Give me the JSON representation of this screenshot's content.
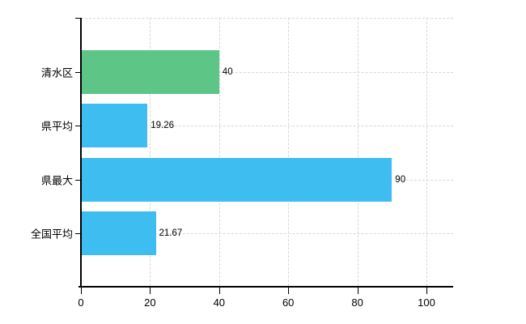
{
  "chart_data": {
    "type": "bar",
    "orientation": "horizontal",
    "categories": [
      "清水区",
      "県平均",
      "県最大",
      "全国平均"
    ],
    "values": [
      40,
      19.26,
      90,
      21.67
    ],
    "value_labels": [
      "40",
      "19.26",
      "90",
      "21.67"
    ],
    "bar_colors": [
      "#5dc687",
      "#3ebdf0",
      "#3ebdf0",
      "#3ebdf0"
    ],
    "xlim": [
      0,
      100
    ],
    "x_ticks": [
      0,
      20,
      40,
      60,
      80,
      100
    ],
    "x_tick_labels": [
      "0",
      "20",
      "40",
      "60",
      "80",
      "100"
    ],
    "grid": true,
    "legend_position": "none"
  },
  "colors": {
    "green_bar": "#5dc687",
    "blue_bar": "#3ebdf0",
    "axis": "#000000",
    "gridline": "#d8d8d8",
    "text": "#000000",
    "background": "#ffffff"
  }
}
